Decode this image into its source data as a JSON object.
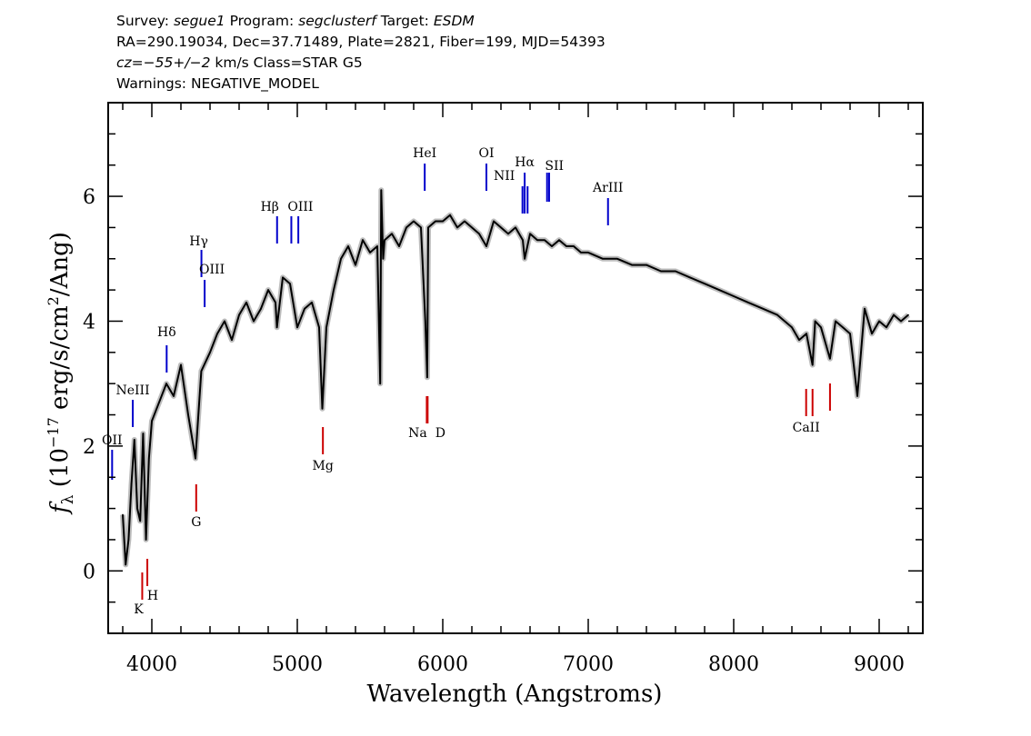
{
  "header": {
    "survey_label": "Survey:",
    "survey": "segue1",
    "program_label": "Program:",
    "program": "segclusterf",
    "target_label": "Target:",
    "target": "ESDM",
    "line2": "RA=290.19034, Dec=37.71489, Plate=2821, Fiber=199, MJD=54393",
    "cz_label": "cz=",
    "cz_value": "−55+/−2",
    "cz_rest": " km/s Class=STAR G5",
    "warnings": "Warnings: NEGATIVE_MODEL"
  },
  "colors": {
    "spectrum": "#000000",
    "error_band": "#bdbdbd",
    "emission_lines": "#0000cc",
    "absorption_lines": "#cc0000"
  },
  "chart_data": {
    "type": "line",
    "xlabel": "Wavelength (Angstroms)",
    "ylabel": "f_λ (10^-17 erg/s/cm^2/Ang)",
    "xlim": [
      3700,
      9300
    ],
    "ylim": [
      -1,
      7.5
    ],
    "xticks": [
      4000,
      5000,
      6000,
      7000,
      8000,
      9000
    ],
    "yticks": [
      0,
      2,
      4,
      6
    ],
    "grid": false,
    "series": [
      {
        "x": [
          3800,
          3820,
          3840,
          3860,
          3880,
          3900,
          3920,
          3940,
          3960,
          3980,
          4000,
          4050,
          4100,
          4150,
          4200,
          4250,
          4300,
          4340,
          4400,
          4450,
          4500,
          4550,
          4600,
          4650,
          4700,
          4750,
          4800,
          4850,
          4860,
          4900,
          4950,
          5000,
          5050,
          5100,
          5150,
          5172,
          5200,
          5250,
          5300,
          5350,
          5400,
          5450,
          5500,
          5550,
          5570,
          5577,
          5590,
          5600,
          5650,
          5700,
          5750,
          5800,
          5850,
          5880,
          5893,
          5900,
          5950,
          6000,
          6050,
          6100,
          6150,
          6200,
          6250,
          6300,
          6350,
          6400,
          6450,
          6500,
          6550,
          6563,
          6600,
          6650,
          6700,
          6750,
          6800,
          6850,
          6900,
          6950,
          7000,
          7100,
          7200,
          7300,
          7400,
          7500,
          7600,
          7700,
          7800,
          7900,
          8000,
          8100,
          8200,
          8300,
          8400,
          8450,
          8500,
          8542,
          8560,
          8600,
          8662,
          8700,
          8750,
          8800,
          8850,
          8900,
          8950,
          9000,
          9050,
          9100,
          9150,
          9200
        ],
        "values": [
          0.9,
          0.1,
          0.5,
          1.4,
          2.1,
          1.0,
          0.8,
          2.2,
          0.5,
          1.8,
          2.4,
          2.7,
          3.0,
          2.8,
          3.3,
          2.5,
          1.8,
          3.2,
          3.5,
          3.8,
          4.0,
          3.7,
          4.1,
          4.3,
          4.0,
          4.2,
          4.5,
          4.3,
          3.9,
          4.7,
          4.6,
          3.9,
          4.2,
          4.3,
          3.9,
          2.6,
          3.9,
          4.5,
          5.0,
          5.2,
          4.9,
          5.3,
          5.1,
          5.2,
          3.0,
          6.1,
          5.0,
          5.3,
          5.4,
          5.2,
          5.5,
          5.6,
          5.5,
          4.0,
          3.1,
          5.5,
          5.6,
          5.6,
          5.7,
          5.5,
          5.6,
          5.5,
          5.4,
          5.2,
          5.6,
          5.5,
          5.4,
          5.5,
          5.3,
          5.0,
          5.4,
          5.3,
          5.3,
          5.2,
          5.3,
          5.2,
          5.2,
          5.1,
          5.1,
          5.0,
          5.0,
          4.9,
          4.9,
          4.8,
          4.8,
          4.7,
          4.6,
          4.5,
          4.4,
          4.3,
          4.2,
          4.1,
          3.9,
          3.7,
          3.8,
          3.3,
          4.0,
          3.9,
          3.4,
          4.0,
          3.9,
          3.8,
          2.8,
          4.2,
          3.8,
          4.0,
          3.9,
          4.1,
          4.0,
          4.1
        ]
      }
    ],
    "line_markers": [
      {
        "label": "OII",
        "wavelength": 3727,
        "color": "blue"
      },
      {
        "label": "NeIII",
        "wavelength": 3869,
        "color": "blue"
      },
      {
        "label": "Hδ",
        "wavelength": 4102,
        "color": "blue"
      },
      {
        "label": "Hγ",
        "wavelength": 4341,
        "color": "blue"
      },
      {
        "label": "OIII",
        "wavelength": 4363,
        "color": "blue"
      },
      {
        "label": "Hβ",
        "wavelength": 4861,
        "color": "blue"
      },
      {
        "label": "OIII",
        "wavelength": 4959,
        "color": "blue"
      },
      {
        "label": "OIII",
        "wavelength": 5007,
        "color": "blue"
      },
      {
        "label": "HeI",
        "wavelength": 5876,
        "color": "blue"
      },
      {
        "label": "OI",
        "wavelength": 6300,
        "color": "blue"
      },
      {
        "label": "NII",
        "wavelength": 6548,
        "color": "blue"
      },
      {
        "label": "Hα",
        "wavelength": 6563,
        "color": "blue"
      },
      {
        "label": "NII",
        "wavelength": 6583,
        "color": "blue"
      },
      {
        "label": "SII",
        "wavelength": 6717,
        "color": "blue"
      },
      {
        "label": "SII",
        "wavelength": 6731,
        "color": "blue"
      },
      {
        "label": "ArIII",
        "wavelength": 7136,
        "color": "blue"
      },
      {
        "label": "K",
        "wavelength": 3934,
        "color": "red"
      },
      {
        "label": "H",
        "wavelength": 3969,
        "color": "red"
      },
      {
        "label": "G",
        "wavelength": 4305,
        "color": "red"
      },
      {
        "label": "Mg",
        "wavelength": 5176,
        "color": "red"
      },
      {
        "label": "Na",
        "wavelength": 5890,
        "color": "red"
      },
      {
        "label": "D",
        "wavelength": 5896,
        "color": "red"
      },
      {
        "label": "CaII",
        "wavelength": 8498,
        "color": "red"
      },
      {
        "label": "CaII",
        "wavelength": 8542,
        "color": "red"
      },
      {
        "label": "CaII",
        "wavelength": 8662,
        "color": "red"
      }
    ]
  }
}
